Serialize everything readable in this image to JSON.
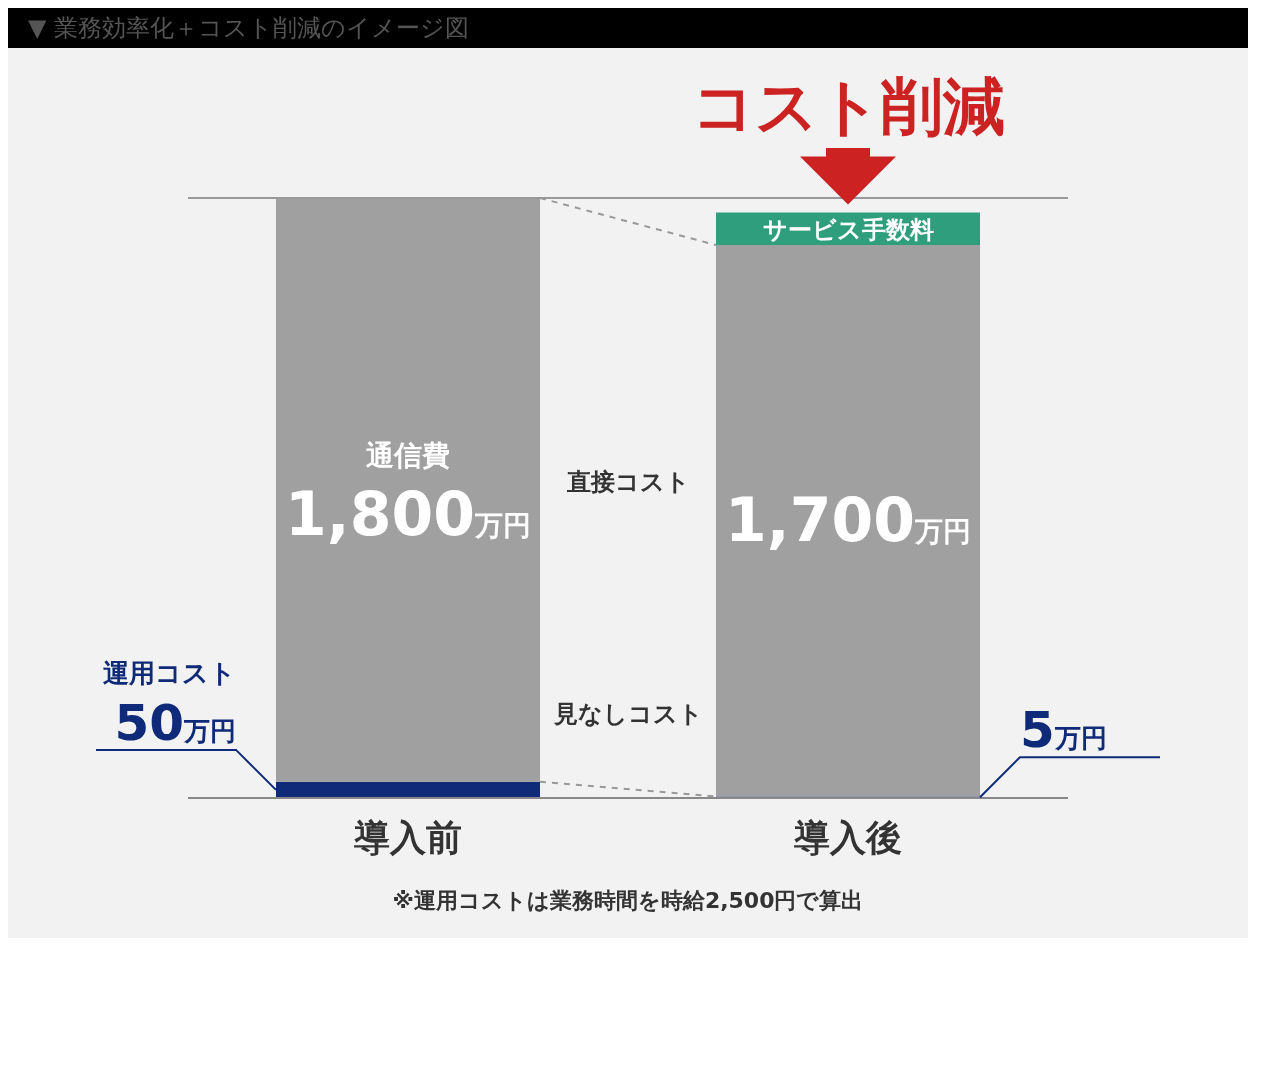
{
  "chart_data": {
    "type": "bar",
    "stacked": true,
    "title": "▼ 業務効率化＋コスト削減のイメージ図",
    "categories": [
      "導入前",
      "導入後"
    ],
    "ylim": [
      0,
      1850
    ],
    "series": [
      {
        "name": "運用コスト",
        "color": "#0f2a78",
        "values": [
          50,
          5
        ],
        "value_labels": [
          "50万円",
          "5万円"
        ]
      },
      {
        "name": "通信費",
        "color": "#a0a0a0",
        "values": [
          1800,
          1700
        ],
        "value_labels": [
          "1,800万円",
          "1,700万円"
        ]
      },
      {
        "name": "サービス手数料",
        "color": "#2e9e7c",
        "values": [
          null,
          100
        ],
        "value_labels": [
          null,
          null
        ]
      }
    ],
    "ref_lines": [
      {
        "axis": "y",
        "value": 1850,
        "color": "#999999"
      }
    ],
    "annotations": [
      "コスト削減",
      "直接コスト",
      "見なしコスト",
      "※運用コストは業務時間を時給2,500円で算出"
    ]
  }
}
